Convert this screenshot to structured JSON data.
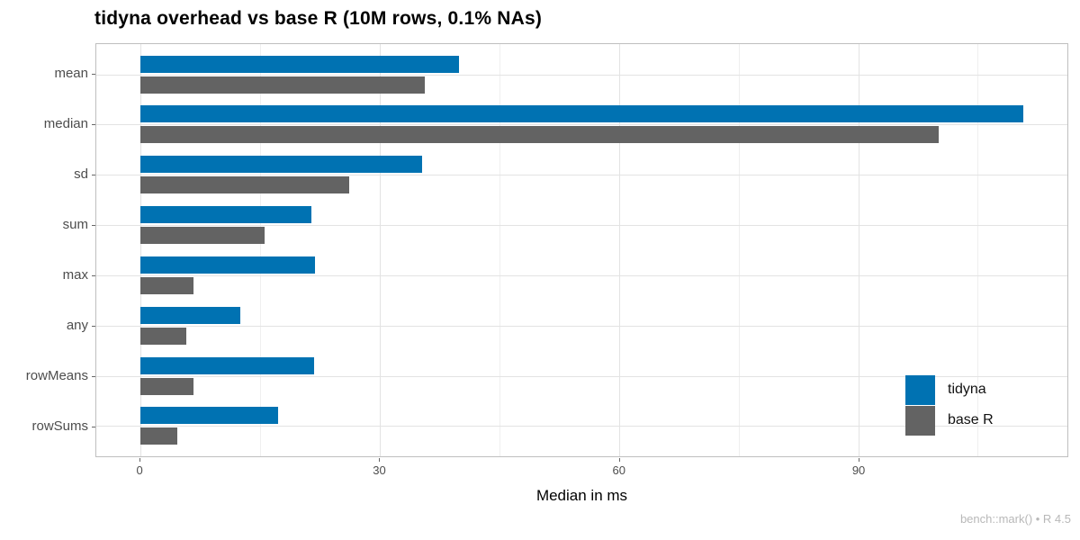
{
  "chart_data": {
    "type": "bar",
    "orientation": "horizontal",
    "title": "tidyna overhead vs base R (10M rows, 0.1% NAs)",
    "xlabel": "Median in ms",
    "ylabel": "",
    "caption": "bench::mark() • R 4.5",
    "categories": [
      "mean",
      "median",
      "sd",
      "sum",
      "max",
      "any",
      "rowMeans",
      "rowSums"
    ],
    "series": [
      {
        "name": "tidyna",
        "color": "#0072B2",
        "values": [
          40.0,
          110.7,
          35.3,
          21.4,
          21.9,
          12.5,
          21.8,
          17.3
        ]
      },
      {
        "name": "base R",
        "color": "#636363",
        "values": [
          35.7,
          100.1,
          26.2,
          15.6,
          6.6,
          5.7,
          6.6,
          4.6
        ]
      }
    ],
    "x_axis": {
      "major_ticks": [
        0,
        30,
        60,
        90
      ],
      "minor_ticks": [
        15,
        45,
        75,
        105
      ],
      "min": -5.54,
      "max": 116.24
    },
    "legend": {
      "position": "inside-right",
      "entries": [
        "tidyna",
        "base R"
      ]
    },
    "grid": true,
    "colors": {
      "panel_border": "#bfbfbf",
      "grid_major": "#e3e3e3",
      "grid_minor": "#efefef",
      "tick": "#666666",
      "axis_text": "#4d4d4d",
      "title_text": "#000000",
      "caption_text": "#b8b8b8",
      "background": "#ffffff"
    }
  }
}
